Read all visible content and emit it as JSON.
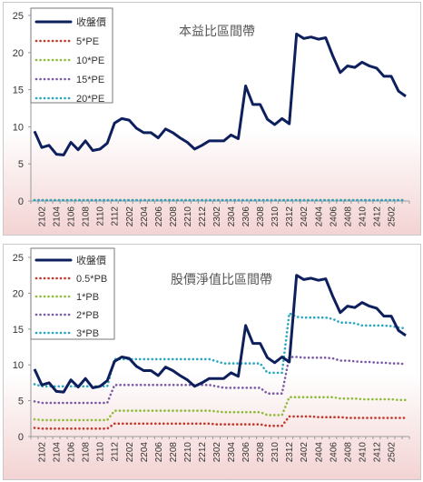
{
  "chart_data": [
    {
      "type": "line",
      "title": "本益比區間帶",
      "ylim": [
        0,
        25
      ],
      "yticks": [
        0,
        5,
        10,
        15,
        20,
        25
      ],
      "x_tick_labels": [
        "2102",
        "2104",
        "2106",
        "2108",
        "2110",
        "2112",
        "2202",
        "2204",
        "2206",
        "2208",
        "2210",
        "2212",
        "2302",
        "2304",
        "2306",
        "2308",
        "2310",
        "2312",
        "2402",
        "2404",
        "2406",
        "2408",
        "2410",
        "2412",
        "2502"
      ],
      "x": [
        "2101",
        "2102",
        "2103",
        "2104",
        "2105",
        "2106",
        "2107",
        "2108",
        "2109",
        "2110",
        "2111",
        "2112",
        "2201",
        "2202",
        "2203",
        "2204",
        "2205",
        "2206",
        "2207",
        "2208",
        "2209",
        "2210",
        "2211",
        "2212",
        "2301",
        "2302",
        "2303",
        "2304",
        "2305",
        "2306",
        "2307",
        "2308",
        "2309",
        "2310",
        "2311",
        "2312",
        "2401",
        "2402",
        "2403",
        "2404",
        "2405",
        "2406",
        "2407",
        "2408",
        "2409",
        "2410",
        "2411",
        "2412",
        "2501",
        "2502",
        "2503",
        "2504"
      ],
      "legend_placement": "top-left",
      "series": [
        {
          "name": "收盤價",
          "color": "#0d1f5c",
          "style": "solid",
          "values": [
            9.4,
            7.2,
            7.5,
            6.3,
            6.2,
            7.9,
            6.9,
            8.1,
            6.8,
            7.0,
            7.8,
            10.5,
            11.1,
            10.9,
            9.8,
            9.2,
            9.2,
            8.5,
            9.7,
            9.2,
            8.5,
            7.9,
            7.0,
            7.5,
            8.1,
            8.1,
            8.1,
            8.9,
            8.4,
            15.5,
            13.0,
            13.0,
            11.0,
            10.3,
            11.1,
            10.4,
            22.5,
            21.9,
            22.1,
            21.8,
            22.0,
            19.5,
            17.3,
            18.2,
            18.0,
            18.7,
            18.2,
            17.9,
            16.8,
            16.8,
            14.8,
            14.1
          ]
        },
        {
          "name": "5*PE",
          "color": "#c0392b",
          "style": "dotted",
          "values": [
            0.1,
            0.1,
            0.1,
            0.1,
            0.1,
            0.1,
            0.1,
            0.1,
            0.1,
            0.1,
            0.1,
            0.1,
            0.1,
            0.1,
            0.1,
            0.1,
            0.1,
            0.1,
            0.1,
            0.1,
            0.1,
            0.1,
            0.1,
            0.1,
            0.1,
            0.1,
            0.1,
            0.1,
            0.1,
            0.1,
            0.1,
            0.1,
            0.1,
            0.1,
            0.1,
            0.1,
            0.1,
            0.1,
            0.1,
            0.1,
            0.1,
            0.1,
            0.1,
            0.1,
            0.1,
            0.1,
            0.1,
            0.1,
            0.1,
            0.1,
            0.1,
            0.1
          ]
        },
        {
          "name": "10*PE",
          "color": "#8fbc3a",
          "style": "dotted",
          "values": [
            0.1,
            0.1,
            0.1,
            0.1,
            0.1,
            0.1,
            0.1,
            0.1,
            0.1,
            0.1,
            0.1,
            0.1,
            0.1,
            0.1,
            0.1,
            0.1,
            0.1,
            0.1,
            0.1,
            0.1,
            0.1,
            0.1,
            0.1,
            0.1,
            0.1,
            0.1,
            0.1,
            0.1,
            0.1,
            0.1,
            0.1,
            0.1,
            0.1,
            0.1,
            0.1,
            0.1,
            0.1,
            0.1,
            0.1,
            0.1,
            0.1,
            0.1,
            0.1,
            0.1,
            0.1,
            0.1,
            0.1,
            0.1,
            0.1,
            0.1,
            0.1,
            0.1
          ]
        },
        {
          "name": "15*PE",
          "color": "#7a5aa6",
          "style": "dotted",
          "values": [
            0.1,
            0.1,
            0.1,
            0.1,
            0.1,
            0.1,
            0.1,
            0.1,
            0.1,
            0.1,
            0.1,
            0.1,
            0.1,
            0.1,
            0.1,
            0.1,
            0.1,
            0.1,
            0.1,
            0.1,
            0.1,
            0.1,
            0.1,
            0.1,
            0.1,
            0.1,
            0.1,
            0.1,
            0.1,
            0.1,
            0.1,
            0.1,
            0.1,
            0.1,
            0.1,
            0.1,
            0.1,
            0.1,
            0.1,
            0.1,
            0.1,
            0.1,
            0.1,
            0.1,
            0.1,
            0.1,
            0.1,
            0.1,
            0.1,
            0.1,
            0.1,
            0.1
          ]
        },
        {
          "name": "20*PE",
          "color": "#2aa7c0",
          "style": "dotted",
          "values": [
            0.1,
            0.1,
            0.1,
            0.1,
            0.1,
            0.1,
            0.1,
            0.1,
            0.1,
            0.1,
            0.1,
            0.1,
            0.1,
            0.1,
            0.1,
            0.1,
            0.1,
            0.1,
            0.1,
            0.1,
            0.1,
            0.1,
            0.1,
            0.1,
            0.1,
            0.1,
            0.1,
            0.1,
            0.1,
            0.1,
            0.1,
            0.1,
            0.1,
            0.1,
            0.1,
            0.1,
            0.1,
            0.1,
            0.1,
            0.1,
            0.1,
            0.1,
            0.1,
            0.1,
            0.1,
            0.1,
            0.1,
            0.1,
            0.1,
            0.1,
            0.1,
            0.1
          ]
        }
      ]
    },
    {
      "type": "line",
      "title": "股價淨值比區間帶",
      "ylim": [
        0,
        25
      ],
      "yticks": [
        0,
        5,
        10,
        15,
        20,
        25
      ],
      "x_tick_labels": [
        "2102",
        "2104",
        "2106",
        "2108",
        "2110",
        "2112",
        "2202",
        "2204",
        "2206",
        "2208",
        "2210",
        "2212",
        "2302",
        "2304",
        "2306",
        "2308",
        "2310",
        "2312",
        "2402",
        "2404",
        "2406",
        "2408",
        "2410",
        "2412",
        "2502"
      ],
      "x": [
        "2101",
        "2102",
        "2103",
        "2104",
        "2105",
        "2106",
        "2107",
        "2108",
        "2109",
        "2110",
        "2111",
        "2112",
        "2201",
        "2202",
        "2203",
        "2204",
        "2205",
        "2206",
        "2207",
        "2208",
        "2209",
        "2210",
        "2211",
        "2212",
        "2301",
        "2302",
        "2303",
        "2304",
        "2305",
        "2306",
        "2307",
        "2308",
        "2309",
        "2310",
        "2311",
        "2312",
        "2401",
        "2402",
        "2403",
        "2404",
        "2405",
        "2406",
        "2407",
        "2408",
        "2409",
        "2410",
        "2411",
        "2412",
        "2501",
        "2502",
        "2503",
        "2504"
      ],
      "legend_placement": "top-left",
      "series": [
        {
          "name": "收盤價",
          "color": "#0d1f5c",
          "style": "solid",
          "values": [
            9.4,
            7.2,
            7.5,
            6.3,
            6.2,
            7.9,
            6.9,
            8.1,
            6.8,
            7.0,
            7.8,
            10.5,
            11.1,
            10.9,
            9.8,
            9.2,
            9.2,
            8.5,
            9.7,
            9.2,
            8.5,
            7.9,
            7.0,
            7.5,
            8.1,
            8.1,
            8.1,
            8.9,
            8.4,
            15.5,
            13.0,
            13.0,
            11.0,
            10.3,
            11.1,
            10.4,
            22.5,
            21.9,
            22.1,
            21.8,
            22.0,
            19.5,
            17.3,
            18.2,
            18.0,
            18.7,
            18.2,
            17.9,
            16.8,
            16.8,
            14.8,
            14.1
          ]
        },
        {
          "name": "0.5*PB",
          "color": "#c0392b",
          "style": "dotted",
          "values": [
            1.2,
            1.1,
            1.1,
            1.1,
            1.1,
            1.1,
            1.1,
            1.1,
            1.1,
            1.1,
            1.1,
            1.8,
            1.8,
            1.8,
            1.8,
            1.8,
            1.8,
            1.8,
            1.8,
            1.8,
            1.8,
            1.8,
            1.8,
            1.8,
            1.8,
            1.7,
            1.7,
            1.7,
            1.7,
            1.7,
            1.7,
            1.7,
            1.5,
            1.5,
            1.5,
            2.8,
            2.8,
            2.8,
            2.8,
            2.7,
            2.7,
            2.7,
            2.7,
            2.6,
            2.6,
            2.6,
            2.6,
            2.6,
            2.6,
            2.6,
            2.6,
            2.6
          ]
        },
        {
          "name": "1*PB",
          "color": "#8fbc3a",
          "style": "dotted",
          "values": [
            2.4,
            2.3,
            2.3,
            2.3,
            2.3,
            2.3,
            2.3,
            2.3,
            2.3,
            2.3,
            2.3,
            3.6,
            3.6,
            3.6,
            3.6,
            3.6,
            3.6,
            3.6,
            3.6,
            3.6,
            3.6,
            3.6,
            3.6,
            3.6,
            3.6,
            3.5,
            3.4,
            3.4,
            3.4,
            3.4,
            3.4,
            3.4,
            3.0,
            3.0,
            3.0,
            5.5,
            5.5,
            5.5,
            5.5,
            5.5,
            5.5,
            5.5,
            5.3,
            5.3,
            5.3,
            5.2,
            5.2,
            5.2,
            5.2,
            5.2,
            5.1,
            5.1
          ]
        },
        {
          "name": "2*PB",
          "color": "#7a5aa6",
          "style": "dotted",
          "values": [
            4.9,
            4.7,
            4.7,
            4.7,
            4.7,
            4.7,
            4.7,
            4.7,
            4.7,
            4.7,
            4.7,
            7.2,
            7.2,
            7.2,
            7.2,
            7.2,
            7.2,
            7.2,
            7.2,
            7.2,
            7.2,
            7.2,
            7.2,
            7.2,
            7.2,
            7.0,
            6.8,
            6.8,
            6.8,
            6.8,
            6.8,
            6.8,
            6.0,
            6.0,
            6.0,
            11.1,
            11.1,
            11.0,
            11.0,
            11.0,
            11.0,
            10.9,
            10.6,
            10.6,
            10.5,
            10.4,
            10.4,
            10.3,
            10.3,
            10.2,
            10.2,
            10.1
          ]
        },
        {
          "name": "3*PB",
          "color": "#2aa7c0",
          "style": "dotted",
          "values": [
            7.3,
            7.0,
            7.0,
            7.0,
            7.0,
            7.0,
            7.0,
            7.0,
            7.0,
            7.0,
            7.0,
            10.8,
            10.8,
            10.8,
            10.8,
            10.8,
            10.8,
            10.8,
            10.8,
            10.8,
            10.8,
            10.8,
            10.8,
            10.8,
            10.8,
            10.5,
            10.2,
            10.2,
            10.2,
            10.2,
            10.2,
            10.2,
            8.9,
            8.9,
            8.9,
            17.2,
            16.7,
            16.6,
            16.6,
            16.6,
            16.6,
            16.4,
            15.9,
            15.9,
            15.8,
            15.5,
            15.5,
            15.5,
            15.5,
            15.4,
            15.2,
            15.1
          ]
        }
      ]
    }
  ]
}
